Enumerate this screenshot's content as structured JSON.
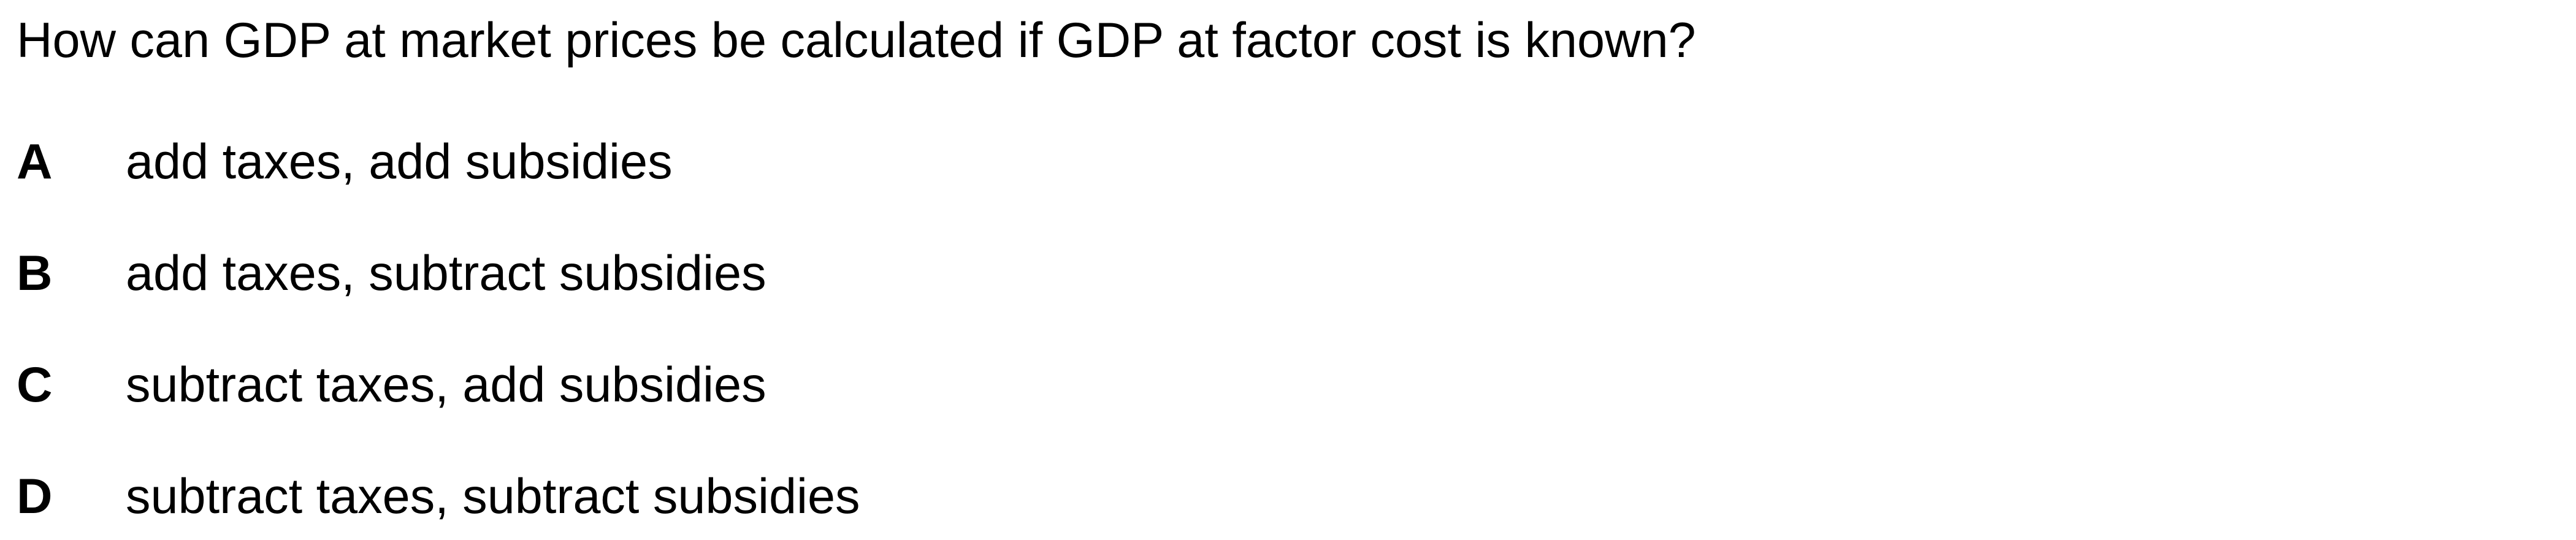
{
  "question": "How can GDP at market prices be calculated if GDP at factor cost is known?",
  "options": [
    {
      "letter": "A",
      "text": "add taxes, add subsidies"
    },
    {
      "letter": "B",
      "text": "add taxes, subtract subsidies"
    },
    {
      "letter": "C",
      "text": "subtract taxes, add subsidies"
    },
    {
      "letter": "D",
      "text": "subtract taxes, subtract subsidies"
    }
  ]
}
